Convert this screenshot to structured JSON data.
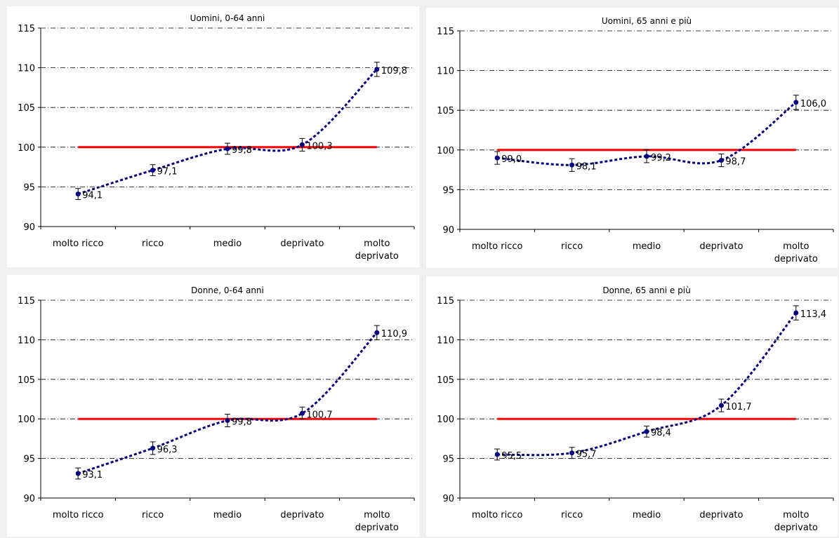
{
  "colors": {
    "reference_line": "#ff0000",
    "series": "#000080",
    "grid": "#000000"
  },
  "chart_data": [
    {
      "type": "line",
      "title": "Uomini, 0-64 anni",
      "categories": [
        "molto ricco",
        "ricco",
        "medio",
        "deprivato",
        "molto deprivato"
      ],
      "values": [
        94.1,
        97.1,
        99.8,
        100.3,
        109.8
      ],
      "data_labels": [
        "94,1",
        "97,1",
        "99,8",
        "100,3",
        "109,8"
      ],
      "error_low": [
        93.4,
        96.4,
        99.1,
        99.5,
        108.9
      ],
      "error_high": [
        94.8,
        97.8,
        100.5,
        101.1,
        110.7
      ],
      "reference_value": 100,
      "ylim": [
        90,
        115
      ],
      "yticks": [
        "90",
        "95",
        "100",
        "105",
        "110",
        "115"
      ],
      "grid": "horizontal dash-dot"
    },
    {
      "type": "line",
      "title": "Uomini, 65 anni e più",
      "categories": [
        "molto ricco",
        "ricco",
        "medio",
        "deprivato",
        "molto deprivato"
      ],
      "values": [
        99.0,
        98.1,
        99.2,
        98.7,
        106.0
      ],
      "data_labels": [
        "99,0",
        "98,1",
        "99,2",
        "98,7",
        "106,0"
      ],
      "error_low": [
        98.2,
        97.3,
        98.4,
        97.9,
        105.1
      ],
      "error_high": [
        99.8,
        98.9,
        100.0,
        99.5,
        106.9
      ],
      "reference_value": 100,
      "ylim": [
        90,
        115
      ],
      "yticks": [
        "90",
        "95",
        "100",
        "105",
        "110",
        "115"
      ],
      "grid": "horizontal dash-dot"
    },
    {
      "type": "line",
      "title": "Donne, 0-64 anni",
      "categories": [
        "molto ricco",
        "ricco",
        "medio",
        "deprivato",
        "molto deprivato"
      ],
      "values": [
        93.1,
        96.3,
        99.8,
        100.7,
        110.9
      ],
      "data_labels": [
        "93,1",
        "96,3",
        "99,8",
        "100,7",
        "110,9"
      ],
      "error_low": [
        92.4,
        95.5,
        99.0,
        100.0,
        110.0
      ],
      "error_high": [
        93.8,
        97.1,
        100.6,
        101.5,
        111.8
      ],
      "reference_value": 100,
      "ylim": [
        90,
        115
      ],
      "yticks": [
        "90",
        "95",
        "100",
        "105",
        "110",
        "115"
      ],
      "grid": "horizontal dash-dot"
    },
    {
      "type": "line",
      "title": "Donne, 65 anni e più",
      "categories": [
        "molto ricco",
        "ricco",
        "medio",
        "deprivato",
        "molto deprivato"
      ],
      "values": [
        95.5,
        95.7,
        98.4,
        101.7,
        113.4
      ],
      "data_labels": [
        "95,5",
        "95,7",
        "98,4",
        "101,7",
        "113,4"
      ],
      "error_low": [
        94.8,
        95.0,
        97.7,
        100.9,
        112.5
      ],
      "error_high": [
        96.2,
        96.4,
        99.1,
        102.5,
        114.3
      ],
      "reference_value": 100,
      "ylim": [
        90,
        115
      ],
      "yticks": [
        "90",
        "95",
        "100",
        "105",
        "110",
        "115"
      ],
      "grid": "horizontal dash-dot"
    }
  ]
}
